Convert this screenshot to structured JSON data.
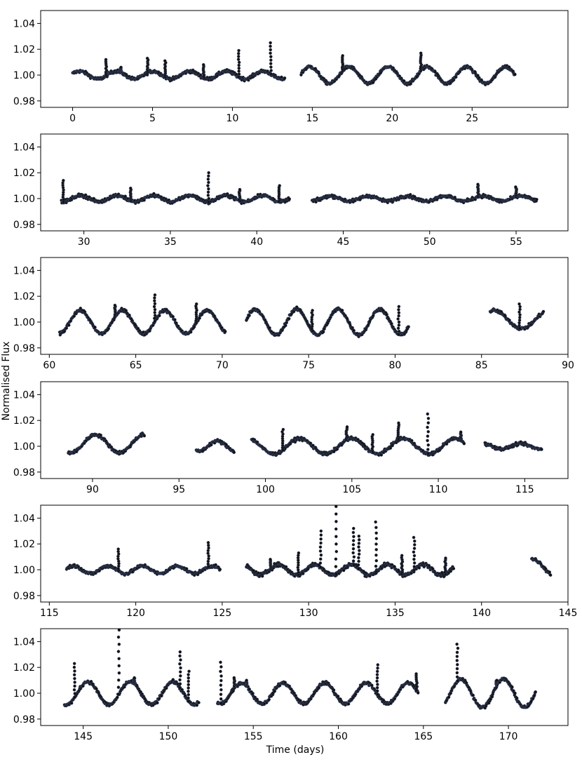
{
  "chart_data": {
    "type": "scatter",
    "xlabel": "Time (days)",
    "ylabel": "Normalised Flux",
    "marker_color": "#111111",
    "marker_edge_color": "#4a5a8a",
    "panels": [
      {
        "xlim": [
          -2,
          31
        ],
        "ylim": [
          0.975,
          1.05
        ],
        "xticks": [
          0,
          5,
          10,
          15,
          20,
          25
        ],
        "yticks": [
          0.98,
          1.0,
          1.02,
          1.04
        ],
        "segments": [
          {
            "start": 0,
            "end": 13.3,
            "baseline": 1.0,
            "amp": 0.003,
            "period": 2.3,
            "phase": 0.4,
            "noise": 0.0012
          },
          {
            "start": 14.3,
            "end": 27.7,
            "baseline": 1.0,
            "amp": 0.0065,
            "period": 2.45,
            "phase": 1.2,
            "noise": 0.0012
          }
        ],
        "flares": [
          {
            "x": 2.1,
            "peak": 1.012
          },
          {
            "x": 4.7,
            "peak": 1.013
          },
          {
            "x": 5.8,
            "peak": 1.011
          },
          {
            "x": 10.4,
            "peak": 1.019
          },
          {
            "x": 12.4,
            "peak": 1.025
          },
          {
            "x": 16.9,
            "peak": 1.015
          },
          {
            "x": 21.8,
            "peak": 1.017
          },
          {
            "x": 3.0,
            "peak": 1.006
          },
          {
            "x": 8.2,
            "peak": 1.008
          }
        ]
      },
      {
        "xlim": [
          27.5,
          58.0
        ],
        "ylim": [
          0.975,
          1.05
        ],
        "xticks": [
          30,
          35,
          40,
          45,
          50,
          55
        ],
        "yticks": [
          0.98,
          1.0,
          1.02,
          1.04
        ],
        "segments": [
          {
            "start": 28.7,
            "end": 41.9,
            "baseline": 1.0,
            "amp": 0.0025,
            "period": 2.1,
            "phase": 0.3,
            "noise": 0.0012
          },
          {
            "start": 43.2,
            "end": 56.2,
            "baseline": 1.0,
            "amp": 0.002,
            "period": 2.2,
            "phase": 0.8,
            "noise": 0.0012
          }
        ],
        "flares": [
          {
            "x": 28.8,
            "peak": 1.014
          },
          {
            "x": 37.2,
            "peak": 1.02
          },
          {
            "x": 41.3,
            "peak": 1.01
          },
          {
            "x": 52.8,
            "peak": 1.011
          },
          {
            "x": 55.0,
            "peak": 1.009
          },
          {
            "x": 32.7,
            "peak": 1.008
          },
          {
            "x": 39.0,
            "peak": 1.007
          }
        ]
      },
      {
        "xlim": [
          59.5,
          90.0
        ],
        "ylim": [
          0.975,
          1.05
        ],
        "xticks": [
          60,
          65,
          70,
          75,
          80,
          85,
          90
        ],
        "yticks": [
          0.98,
          1.0,
          1.02,
          1.04
        ],
        "segments": [
          {
            "start": 60.6,
            "end": 70.2,
            "baseline": 1.0,
            "amp": 0.009,
            "period": 2.45,
            "phase": 0.2,
            "noise": 0.0012
          },
          {
            "start": 71.4,
            "end": 80.8,
            "baseline": 1.0,
            "amp": 0.01,
            "period": 2.4,
            "phase": 1.8,
            "noise": 0.0012
          },
          {
            "start": 85.5,
            "end": 88.6,
            "baseline": 1.002,
            "amp": 0.007,
            "period": 3.2,
            "phase": 2.9,
            "noise": 0.0012
          }
        ],
        "flares": [
          {
            "x": 63.8,
            "peak": 1.013
          },
          {
            "x": 66.1,
            "peak": 1.021
          },
          {
            "x": 68.5,
            "peak": 1.014
          },
          {
            "x": 75.2,
            "peak": 1.009
          },
          {
            "x": 80.2,
            "peak": 1.012
          },
          {
            "x": 87.2,
            "peak": 1.014
          }
        ]
      },
      {
        "xlim": [
          87.0,
          117.5
        ],
        "ylim": [
          0.975,
          1.05
        ],
        "xticks": [
          90,
          95,
          100,
          105,
          110,
          115
        ],
        "yticks": [
          0.98,
          1.0,
          1.02,
          1.04
        ],
        "segments": [
          {
            "start": 88.6,
            "end": 93.0,
            "baseline": 1.002,
            "amp": 0.007,
            "period": 2.8,
            "phase": 0.3,
            "noise": 0.0012
          },
          {
            "start": 96.0,
            "end": 98.2,
            "baseline": 1.0,
            "amp": 0.004,
            "period": 2.2,
            "phase": 0.4,
            "noise": 0.0012
          },
          {
            "start": 99.2,
            "end": 111.5,
            "baseline": 1.0,
            "amp": 0.006,
            "period": 3.0,
            "phase": 1.6,
            "noise": 0.0012
          },
          {
            "start": 112.7,
            "end": 116.0,
            "baseline": 1.0,
            "amp": 0.002,
            "period": 2.2,
            "phase": 0.5,
            "noise": 0.0011
          }
        ],
        "flares": [
          {
            "x": 104.7,
            "peak": 1.015
          },
          {
            "x": 107.7,
            "peak": 1.018
          },
          {
            "x": 109.4,
            "peak": 1.025
          },
          {
            "x": 111.3,
            "peak": 1.011
          },
          {
            "x": 106.2,
            "peak": 1.009
          },
          {
            "x": 101.0,
            "peak": 1.013
          }
        ]
      },
      {
        "xlim": [
          114.5,
          145.0
        ],
        "ylim": [
          0.975,
          1.05
        ],
        "xticks": [
          115,
          120,
          125,
          130,
          135,
          140,
          145
        ],
        "yticks": [
          0.98,
          1.0,
          1.02,
          1.04
        ],
        "segments": [
          {
            "start": 116.0,
            "end": 124.9,
            "baseline": 1.0,
            "amp": 0.003,
            "period": 2.0,
            "phase": 0.3,
            "noise": 0.0012
          },
          {
            "start": 126.4,
            "end": 138.4,
            "baseline": 1.0,
            "amp": 0.004,
            "period": 2.1,
            "phase": 1.1,
            "noise": 0.0015
          },
          {
            "start": 142.9,
            "end": 144.0,
            "baseline": 1.002,
            "amp": 0.006,
            "period": 2.4,
            "phase": 4.2,
            "noise": 0.0012
          }
        ],
        "flares": [
          {
            "x": 119.0,
            "peak": 1.016
          },
          {
            "x": 124.2,
            "peak": 1.021
          },
          {
            "x": 130.7,
            "peak": 1.03
          },
          {
            "x": 131.6,
            "peak": 1.049
          },
          {
            "x": 132.6,
            "peak": 1.032
          },
          {
            "x": 132.9,
            "peak": 1.026
          },
          {
            "x": 133.9,
            "peak": 1.037
          },
          {
            "x": 136.1,
            "peak": 1.025
          },
          {
            "x": 129.4,
            "peak": 1.013
          },
          {
            "x": 135.4,
            "peak": 1.011
          },
          {
            "x": 137.9,
            "peak": 1.009
          },
          {
            "x": 127.8,
            "peak": 1.008
          }
        ]
      },
      {
        "xlim": [
          142.5,
          173.5
        ],
        "ylim": [
          0.975,
          1.05
        ],
        "xticks": [
          145,
          150,
          155,
          160,
          165,
          170
        ],
        "yticks": [
          0.98,
          1.0,
          1.02,
          1.04
        ],
        "segments": [
          {
            "start": 143.9,
            "end": 151.8,
            "baseline": 1.0,
            "amp": 0.009,
            "period": 2.5,
            "phase": 0.9,
            "noise": 0.0012
          },
          {
            "start": 152.9,
            "end": 164.7,
            "baseline": 1.0,
            "amp": 0.008,
            "period": 2.45,
            "phase": 1.7,
            "noise": 0.0012
          },
          {
            "start": 166.3,
            "end": 171.6,
            "baseline": 1.0,
            "amp": 0.011,
            "period": 2.5,
            "phase": 2.3,
            "noise": 0.0012
          }
        ],
        "flares": [
          {
            "x": 144.5,
            "peak": 1.023
          },
          {
            "x": 147.1,
            "peak": 1.049
          },
          {
            "x": 148.0,
            "peak": 1.012
          },
          {
            "x": 150.7,
            "peak": 1.032
          },
          {
            "x": 151.2,
            "peak": 1.017
          },
          {
            "x": 153.1,
            "peak": 1.024
          },
          {
            "x": 153.9,
            "peak": 1.012
          },
          {
            "x": 154.6,
            "peak": 1.01
          },
          {
            "x": 162.3,
            "peak": 1.022
          },
          {
            "x": 164.6,
            "peak": 1.015
          },
          {
            "x": 167.0,
            "peak": 1.038
          },
          {
            "x": 169.3,
            "peak": 1.01
          }
        ]
      }
    ]
  }
}
